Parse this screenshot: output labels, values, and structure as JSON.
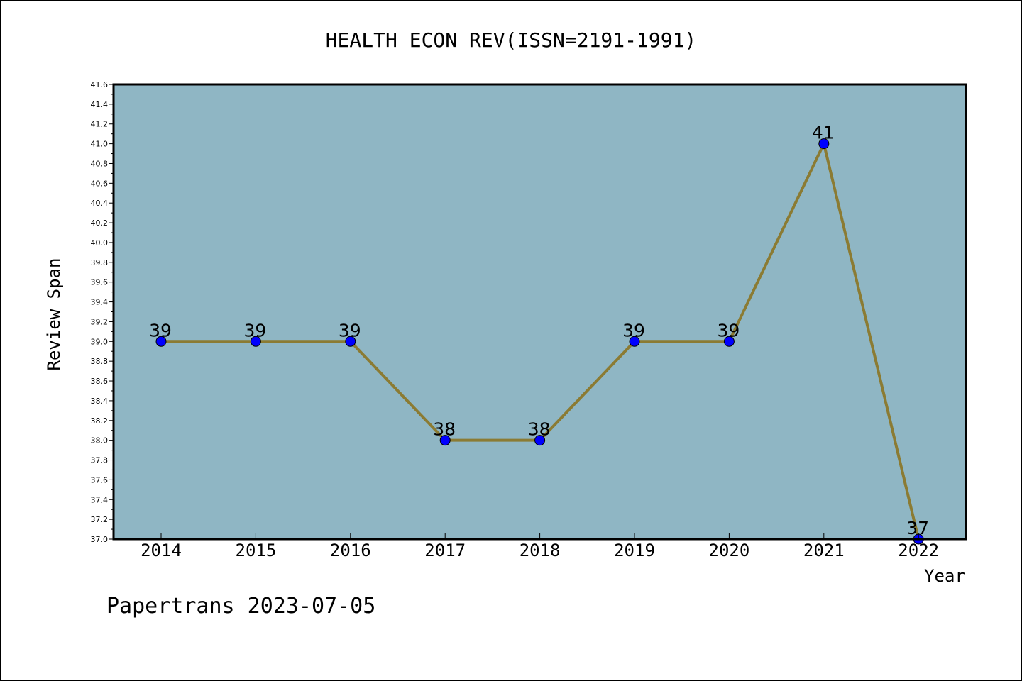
{
  "chart_data": {
    "type": "line",
    "title": "HEALTH ECON REV(ISSN=2191-1991)",
    "xlabel": "Year",
    "ylabel": "Review Span",
    "categories": [
      "2014",
      "2015",
      "2016",
      "2017",
      "2018",
      "2019",
      "2020",
      "2021",
      "2022"
    ],
    "values": [
      39,
      39,
      39,
      38,
      38,
      39,
      39,
      41,
      37
    ],
    "data_labels": [
      "39",
      "39",
      "39",
      "38",
      "38",
      "39",
      "39",
      "41",
      "37"
    ],
    "ylim": [
      37.0,
      41.6
    ],
    "yticks": [
      "37.0",
      "37.2",
      "37.4",
      "37.6",
      "37.8",
      "38.0",
      "38.2",
      "38.4",
      "38.6",
      "38.8",
      "39.0",
      "39.2",
      "39.4",
      "39.6",
      "39.8",
      "40.0",
      "40.2",
      "40.4",
      "40.6",
      "40.8",
      "41.0",
      "41.2",
      "41.4",
      "41.6"
    ],
    "grid": false,
    "colors": {
      "plot_background": "#8fb6c4",
      "line": "#8b7b33",
      "marker": "#0000ff"
    }
  },
  "footer": {
    "text": "Papertrans 2023-07-05"
  }
}
